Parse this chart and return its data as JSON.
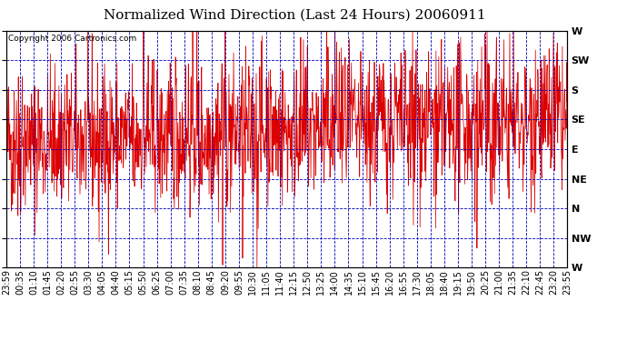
{
  "title": "Normalized Wind Direction (Last 24 Hours) 20060911",
  "copyright": "Copyright 2006 Cartronics.com",
  "ytick_labels_bottom_to_top": [
    "W",
    "NW",
    "N",
    "NE",
    "E",
    "SE",
    "S",
    "SW",
    "W"
  ],
  "ytick_labels_top_to_bottom": [
    "W",
    "SW",
    "S",
    "SE",
    "E",
    "NE",
    "N",
    "NW",
    "W"
  ],
  "xtick_labels": [
    "23:59",
    "00:35",
    "01:10",
    "01:45",
    "02:20",
    "02:55",
    "03:30",
    "04:05",
    "04:40",
    "05:15",
    "05:50",
    "06:25",
    "07:00",
    "07:35",
    "08:10",
    "08:45",
    "09:20",
    "09:55",
    "10:30",
    "11:05",
    "11:40",
    "12:15",
    "12:50",
    "13:25",
    "14:00",
    "14:35",
    "15:10",
    "15:45",
    "16:20",
    "16:55",
    "17:30",
    "18:05",
    "18:40",
    "19:15",
    "19:50",
    "20:25",
    "21:00",
    "21:35",
    "22:10",
    "22:45",
    "23:20",
    "23:55"
  ],
  "bg_color": "#ffffff",
  "line_color": "#dd0000",
  "grid_color": "#0000bb",
  "border_color": "#000000",
  "title_fontsize": 11,
  "tick_fontsize": 7,
  "copyright_fontsize": 6.5,
  "seed": 42,
  "n_points": 1440,
  "figwidth": 6.9,
  "figheight": 3.75,
  "dpi": 100
}
